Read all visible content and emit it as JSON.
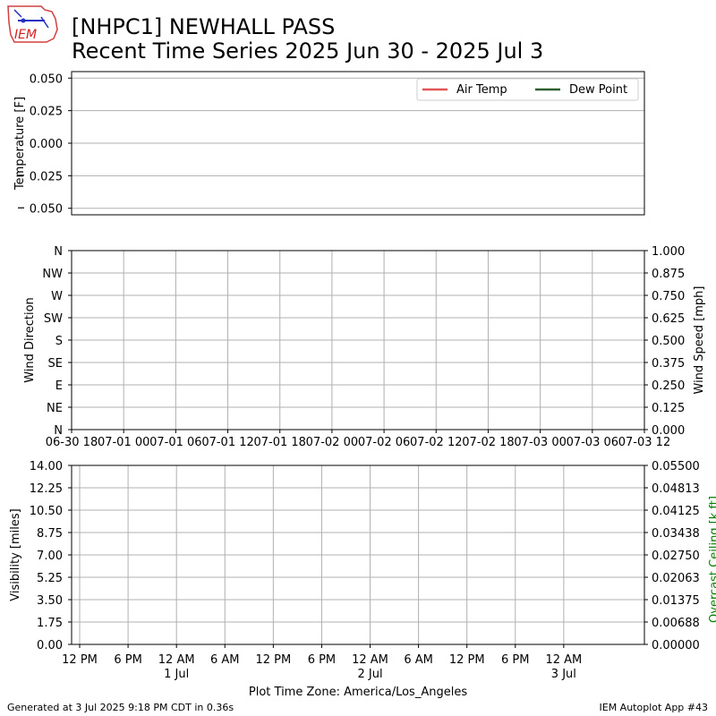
{
  "header": {
    "title_line1": "[NHPC1] NEWHALL PASS",
    "title_line2": "Recent Time Series 2025 Jun 30 - 2025 Jul 3",
    "logo_text": "IEM"
  },
  "footer": {
    "generated": "Generated at 3 Jul 2025 9:18 PM CDT in 0.36s",
    "app": "IEM Autoplot App #43"
  },
  "chart_data": [
    {
      "type": "line",
      "ylabel": "Temperature [F]",
      "ylim": [
        -0.055,
        0.055
      ],
      "yticks": [
        {
          "v": 0.05,
          "label": "0.050"
        },
        {
          "v": 0.025,
          "label": "0.025"
        },
        {
          "v": 0.0,
          "label": "0.000"
        },
        {
          "v": -0.025,
          "label": "0.025"
        },
        {
          "v": -0.05,
          "label": "0.050"
        }
      ],
      "series": [
        {
          "name": "Air Temp",
          "color": "#e15759",
          "values": []
        },
        {
          "name": "Dew Point",
          "color": "#2e5f2e",
          "values": []
        }
      ],
      "legend": "top-right",
      "grid": "y"
    },
    {
      "type": "scatter",
      "ylabel": "Wind Direction",
      "ylabel_right": "Wind Speed [mph]",
      "ylim": [
        0,
        360
      ],
      "ylim_right": [
        0,
        1
      ],
      "yticks": [
        {
          "v": 360,
          "label": "N"
        },
        {
          "v": 315,
          "label": "NW"
        },
        {
          "v": 270,
          "label": "W"
        },
        {
          "v": 225,
          "label": "SW"
        },
        {
          "v": 180,
          "label": "S"
        },
        {
          "v": 135,
          "label": "SE"
        },
        {
          "v": 90,
          "label": "E"
        },
        {
          "v": 45,
          "label": "NE"
        },
        {
          "v": 0,
          "label": "N"
        }
      ],
      "yticks_right": [
        "1.000",
        "0.875",
        "0.750",
        "0.625",
        "0.500",
        "0.375",
        "0.250",
        "0.125",
        "0.000"
      ],
      "xlim": [
        "2025-06-30 18:00",
        "2025-07-03 12:00"
      ],
      "xticks": [
        "06-30 18",
        "07-01 00",
        "07-01 06",
        "07-01 12",
        "07-01 18",
        "07-02 00",
        "07-02 06",
        "07-02 12",
        "07-02 18",
        "07-03 00",
        "07-03 06",
        "07-03 12"
      ],
      "series": [],
      "grid": "both"
    },
    {
      "type": "line",
      "ylabel": "Visibility [miles]",
      "ylabel_right": "Overcast Ceiling [k ft]",
      "ylabel_right_color": "#008000",
      "ylim": [
        0,
        14
      ],
      "ylim_right": [
        0,
        0.055
      ],
      "yticks": [
        "14.00",
        "12.25",
        "10.50",
        "8.75",
        "7.00",
        "5.25",
        "3.50",
        "1.75",
        "0.00"
      ],
      "yticks_right": [
        "0.05500",
        "0.04813",
        "0.04125",
        "0.03438",
        "0.02750",
        "0.02063",
        "0.01375",
        "0.00688",
        "0.00000"
      ],
      "xlim": [
        "2025-06-30 11:00",
        "2025-07-03 10:00"
      ],
      "xticks": [
        {
          "t": "2025-06-30 12:00",
          "l1": "12 PM",
          "l2": ""
        },
        {
          "t": "2025-06-30 18:00",
          "l1": "6 PM",
          "l2": ""
        },
        {
          "t": "2025-07-01 00:00",
          "l1": "12 AM",
          "l2": "1 Jul"
        },
        {
          "t": "2025-07-01 06:00",
          "l1": "6 AM",
          "l2": ""
        },
        {
          "t": "2025-07-01 12:00",
          "l1": "12 PM",
          "l2": ""
        },
        {
          "t": "2025-07-01 18:00",
          "l1": "6 PM",
          "l2": ""
        },
        {
          "t": "2025-07-02 00:00",
          "l1": "12 AM",
          "l2": "2 Jul"
        },
        {
          "t": "2025-07-02 06:00",
          "l1": "6 AM",
          "l2": ""
        },
        {
          "t": "2025-07-02 12:00",
          "l1": "12 PM",
          "l2": ""
        },
        {
          "t": "2025-07-02 18:00",
          "l1": "6 PM",
          "l2": ""
        },
        {
          "t": "2025-07-03 00:00",
          "l1": "12 AM",
          "l2": "3 Jul"
        }
      ],
      "xlabel": "Plot Time Zone: America/Los_Angeles",
      "series": [],
      "grid": "both"
    }
  ]
}
